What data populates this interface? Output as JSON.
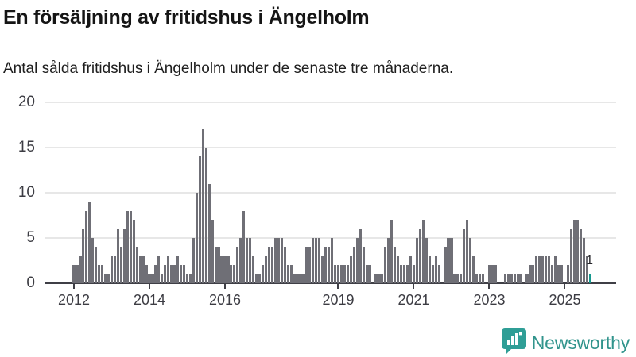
{
  "header": {
    "title": "En försäljning av fritidshus i Ängelholm",
    "subtitle": "Antal sålda fritidshus i Ängelholm under de senaste tre månaderna."
  },
  "chart_data": {
    "type": "bar",
    "title": "En försäljning av fritidshus i Ängelholm",
    "xlabel": "",
    "ylabel": "",
    "start_month": "2012-01",
    "end_month": "2025-09",
    "ylim": [
      0,
      20
    ],
    "y_ticks": [
      0,
      5,
      10,
      15,
      20
    ],
    "grid": "horizontal",
    "x_ticks": [
      {
        "label": "2012",
        "month_index": 0
      },
      {
        "label": "2014",
        "month_index": 24
      },
      {
        "label": "2016",
        "month_index": 48
      },
      {
        "label": "2019",
        "month_index": 84
      },
      {
        "label": "2021",
        "month_index": 108
      },
      {
        "label": "2023",
        "month_index": 132
      },
      {
        "label": "2025",
        "month_index": 156
      }
    ],
    "values": [
      2,
      2,
      3,
      6,
      8,
      9,
      5,
      4,
      2,
      2,
      1,
      1,
      3,
      3,
      6,
      4,
      6,
      8,
      8,
      7,
      4,
      3,
      3,
      2,
      1,
      1,
      2,
      3,
      1,
      2,
      3,
      2,
      2,
      3,
      2,
      2,
      1,
      1,
      5,
      10,
      14,
      17,
      15,
      11,
      7,
      4,
      4,
      3,
      3,
      3,
      2,
      2,
      4,
      5,
      8,
      5,
      5,
      3,
      1,
      1,
      2,
      3,
      4,
      4,
      5,
      5,
      5,
      4,
      2,
      2,
      1,
      1,
      1,
      1,
      4,
      4,
      5,
      5,
      5,
      3,
      4,
      4,
      5,
      2,
      2,
      2,
      2,
      2,
      3,
      4,
      5,
      6,
      4,
      2,
      2,
      0,
      1,
      1,
      1,
      4,
      5,
      7,
      4,
      3,
      2,
      2,
      2,
      3,
      2,
      5,
      6,
      7,
      5,
      3,
      2,
      3,
      2,
      0,
      4,
      5,
      5,
      1,
      1,
      1,
      6,
      7,
      5,
      3,
      1,
      1,
      1,
      0,
      2,
      2,
      2,
      0,
      0,
      1,
      1,
      1,
      1,
      1,
      1,
      0,
      1,
      2,
      2,
      3,
      3,
      3,
      3,
      3,
      2,
      3,
      2,
      2,
      0,
      2,
      6,
      7,
      7,
      6,
      5,
      3,
      1
    ],
    "highlight_last_bar": true,
    "last_value_label": "1",
    "colors": {
      "bar": "#6f6f76",
      "highlight": "#16988e"
    }
  },
  "footer": {
    "brand": "Newsworthy",
    "brand_color": "#31948c",
    "icon": "bar-chart-speech-bubble-icon"
  }
}
